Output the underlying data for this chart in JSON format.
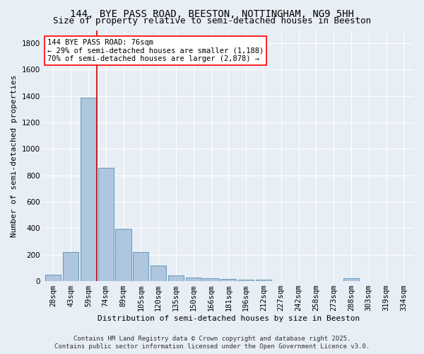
{
  "title": "144, BYE PASS ROAD, BEESTON, NOTTINGHAM, NG9 5HH",
  "subtitle": "Size of property relative to semi-detached houses in Beeston",
  "xlabel": "Distribution of semi-detached houses by size in Beeston",
  "ylabel": "Number of semi-detached properties",
  "footer_line1": "Contains HM Land Registry data © Crown copyright and database right 2025.",
  "footer_line2": "Contains public sector information licensed under the Open Government Licence v3.0.",
  "bar_labels": [
    "28sqm",
    "43sqm",
    "59sqm",
    "74sqm",
    "89sqm",
    "105sqm",
    "120sqm",
    "135sqm",
    "150sqm",
    "166sqm",
    "181sqm",
    "196sqm",
    "212sqm",
    "227sqm",
    "242sqm",
    "258sqm",
    "273sqm",
    "288sqm",
    "303sqm",
    "319sqm",
    "334sqm"
  ],
  "bar_values": [
    50,
    220,
    1390,
    860,
    395,
    220,
    120,
    45,
    25,
    20,
    15,
    10,
    10,
    0,
    0,
    0,
    0,
    20,
    0,
    0,
    0
  ],
  "bar_color": "#aec6de",
  "bar_edgecolor": "#6699bb",
  "bar_linewidth": 0.7,
  "vline_x": 2.5,
  "vline_color": "#cc0000",
  "vline_linewidth": 1.2,
  "annotation_text": "144 BYE PASS ROAD: 76sqm\n← 29% of semi-detached houses are smaller (1,188)\n70% of semi-detached houses are larger (2,878) →",
  "ylim": [
    0,
    1900
  ],
  "yticks": [
    0,
    200,
    400,
    600,
    800,
    1000,
    1200,
    1400,
    1600,
    1800
  ],
  "background_color": "#e8eef5",
  "plot_bg_color": "#e8eef5",
  "grid_color": "#ffffff",
  "title_fontsize": 10,
  "subtitle_fontsize": 9,
  "ylabel_fontsize": 8,
  "xlabel_fontsize": 8,
  "tick_fontsize": 7.5,
  "annotation_fontsize": 7.5,
  "footer_fontsize": 6.5
}
